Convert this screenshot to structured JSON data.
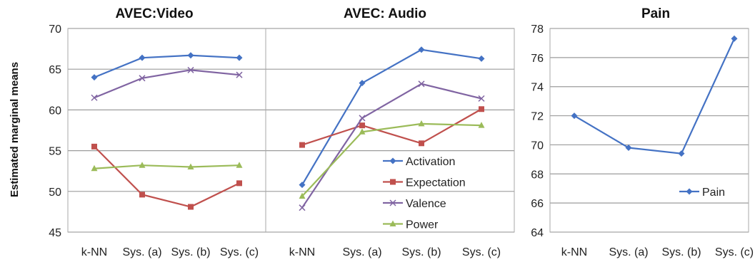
{
  "ylabel": "Estimated marginal means",
  "chart_data": [
    {
      "type": "line",
      "title": "AVEC:Video",
      "categories": [
        "k-NN",
        "Sys. (a)",
        "Sys. (b)",
        "Sys. (c)"
      ],
      "ylim": [
        45,
        70
      ],
      "yticks": [
        45,
        50,
        55,
        60,
        65,
        70
      ],
      "series": [
        {
          "name": "Activation",
          "color": "#4472C4",
          "marker": "diamond",
          "values": [
            64.0,
            66.4,
            66.7,
            66.4
          ]
        },
        {
          "name": "Expectation",
          "color": "#C0504D",
          "marker": "square",
          "values": [
            55.5,
            49.6,
            48.1,
            51.0
          ]
        },
        {
          "name": "Valence",
          "color": "#8064A2",
          "marker": "x",
          "values": [
            61.5,
            63.9,
            64.9,
            64.3
          ]
        },
        {
          "name": "Power",
          "color": "#9BBB59",
          "marker": "triangle",
          "values": [
            52.8,
            53.2,
            53.0,
            53.2
          ]
        }
      ]
    },
    {
      "type": "line",
      "title": "AVEC: Audio",
      "categories": [
        "k-NN",
        "Sys. (a)",
        "Sys. (b)",
        "Sys. (c)"
      ],
      "ylim": [
        45,
        70
      ],
      "series": [
        {
          "name": "Activation",
          "color": "#4472C4",
          "marker": "diamond",
          "values": [
            50.8,
            63.3,
            67.4,
            66.3
          ]
        },
        {
          "name": "Expectation",
          "color": "#C0504D",
          "marker": "square",
          "values": [
            55.7,
            58.1,
            55.9,
            60.1
          ]
        },
        {
          "name": "Valence",
          "color": "#8064A2",
          "marker": "x",
          "values": [
            48.0,
            59.0,
            63.2,
            61.4
          ]
        },
        {
          "name": "Power",
          "color": "#9BBB59",
          "marker": "triangle",
          "values": [
            49.4,
            57.3,
            58.3,
            58.1
          ]
        }
      ],
      "legend": {
        "position": "bottom-right",
        "entries": [
          "Activation",
          "Expectation",
          "Valence",
          "Power"
        ]
      }
    },
    {
      "type": "line",
      "title": "Pain",
      "categories": [
        "k-NN",
        "Sys. (a)",
        "Sys. (b)",
        "Sys. (c)"
      ],
      "ylim": [
        64,
        78
      ],
      "yticks": [
        64,
        66,
        68,
        70,
        72,
        74,
        76,
        78
      ],
      "series": [
        {
          "name": "Pain",
          "color": "#4472C4",
          "marker": "diamond",
          "values": [
            72.0,
            69.8,
            69.4,
            77.3
          ]
        }
      ],
      "legend": {
        "position": "bottom-right",
        "entries": [
          "Pain"
        ]
      }
    }
  ]
}
